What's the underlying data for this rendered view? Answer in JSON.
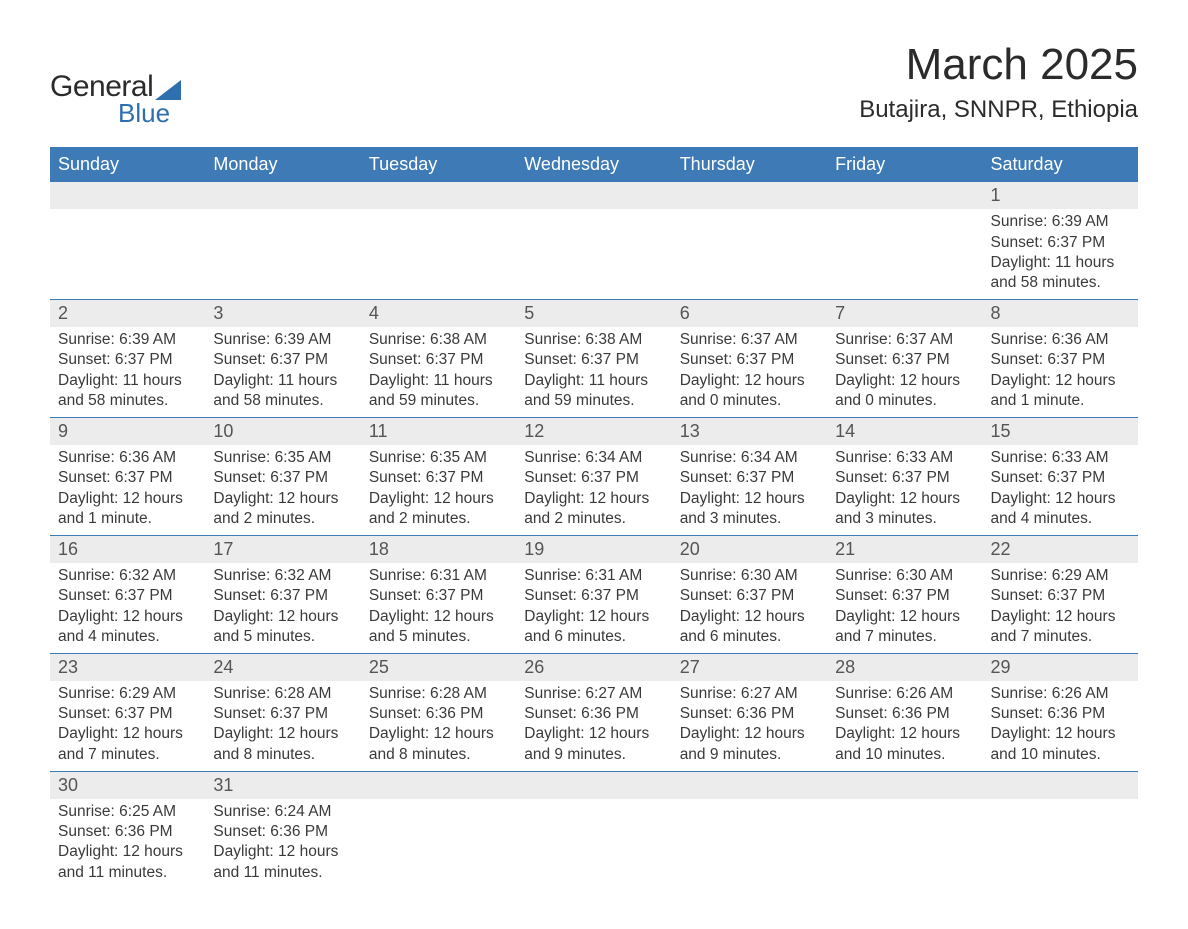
{
  "logo": {
    "text1": "General",
    "text2": "Blue",
    "shape_color": "#2e6fb0"
  },
  "title": "March 2025",
  "location": "Butajira, SNNPR, Ethiopia",
  "colors": {
    "header_bg": "#3d7ab6",
    "header_text": "#ffffff",
    "daynum_bg": "#ececec",
    "border": "#3d7ab6",
    "body_text": "#3a3a3a"
  },
  "weekdays": [
    "Sunday",
    "Monday",
    "Tuesday",
    "Wednesday",
    "Thursday",
    "Friday",
    "Saturday"
  ],
  "weeks": [
    [
      null,
      null,
      null,
      null,
      null,
      null,
      {
        "n": "1",
        "sr": "6:39 AM",
        "ss": "6:37 PM",
        "dl": "11 hours and 58 minutes."
      }
    ],
    [
      {
        "n": "2",
        "sr": "6:39 AM",
        "ss": "6:37 PM",
        "dl": "11 hours and 58 minutes."
      },
      {
        "n": "3",
        "sr": "6:39 AM",
        "ss": "6:37 PM",
        "dl": "11 hours and 58 minutes."
      },
      {
        "n": "4",
        "sr": "6:38 AM",
        "ss": "6:37 PM",
        "dl": "11 hours and 59 minutes."
      },
      {
        "n": "5",
        "sr": "6:38 AM",
        "ss": "6:37 PM",
        "dl": "11 hours and 59 minutes."
      },
      {
        "n": "6",
        "sr": "6:37 AM",
        "ss": "6:37 PM",
        "dl": "12 hours and 0 minutes."
      },
      {
        "n": "7",
        "sr": "6:37 AM",
        "ss": "6:37 PM",
        "dl": "12 hours and 0 minutes."
      },
      {
        "n": "8",
        "sr": "6:36 AM",
        "ss": "6:37 PM",
        "dl": "12 hours and 1 minute."
      }
    ],
    [
      {
        "n": "9",
        "sr": "6:36 AM",
        "ss": "6:37 PM",
        "dl": "12 hours and 1 minute."
      },
      {
        "n": "10",
        "sr": "6:35 AM",
        "ss": "6:37 PM",
        "dl": "12 hours and 2 minutes."
      },
      {
        "n": "11",
        "sr": "6:35 AM",
        "ss": "6:37 PM",
        "dl": "12 hours and 2 minutes."
      },
      {
        "n": "12",
        "sr": "6:34 AM",
        "ss": "6:37 PM",
        "dl": "12 hours and 2 minutes."
      },
      {
        "n": "13",
        "sr": "6:34 AM",
        "ss": "6:37 PM",
        "dl": "12 hours and 3 minutes."
      },
      {
        "n": "14",
        "sr": "6:33 AM",
        "ss": "6:37 PM",
        "dl": "12 hours and 3 minutes."
      },
      {
        "n": "15",
        "sr": "6:33 AM",
        "ss": "6:37 PM",
        "dl": "12 hours and 4 minutes."
      }
    ],
    [
      {
        "n": "16",
        "sr": "6:32 AM",
        "ss": "6:37 PM",
        "dl": "12 hours and 4 minutes."
      },
      {
        "n": "17",
        "sr": "6:32 AM",
        "ss": "6:37 PM",
        "dl": "12 hours and 5 minutes."
      },
      {
        "n": "18",
        "sr": "6:31 AM",
        "ss": "6:37 PM",
        "dl": "12 hours and 5 minutes."
      },
      {
        "n": "19",
        "sr": "6:31 AM",
        "ss": "6:37 PM",
        "dl": "12 hours and 6 minutes."
      },
      {
        "n": "20",
        "sr": "6:30 AM",
        "ss": "6:37 PM",
        "dl": "12 hours and 6 minutes."
      },
      {
        "n": "21",
        "sr": "6:30 AM",
        "ss": "6:37 PM",
        "dl": "12 hours and 7 minutes."
      },
      {
        "n": "22",
        "sr": "6:29 AM",
        "ss": "6:37 PM",
        "dl": "12 hours and 7 minutes."
      }
    ],
    [
      {
        "n": "23",
        "sr": "6:29 AM",
        "ss": "6:37 PM",
        "dl": "12 hours and 7 minutes."
      },
      {
        "n": "24",
        "sr": "6:28 AM",
        "ss": "6:37 PM",
        "dl": "12 hours and 8 minutes."
      },
      {
        "n": "25",
        "sr": "6:28 AM",
        "ss": "6:36 PM",
        "dl": "12 hours and 8 minutes."
      },
      {
        "n": "26",
        "sr": "6:27 AM",
        "ss": "6:36 PM",
        "dl": "12 hours and 9 minutes."
      },
      {
        "n": "27",
        "sr": "6:27 AM",
        "ss": "6:36 PM",
        "dl": "12 hours and 9 minutes."
      },
      {
        "n": "28",
        "sr": "6:26 AM",
        "ss": "6:36 PM",
        "dl": "12 hours and 10 minutes."
      },
      {
        "n": "29",
        "sr": "6:26 AM",
        "ss": "6:36 PM",
        "dl": "12 hours and 10 minutes."
      }
    ],
    [
      {
        "n": "30",
        "sr": "6:25 AM",
        "ss": "6:36 PM",
        "dl": "12 hours and 11 minutes."
      },
      {
        "n": "31",
        "sr": "6:24 AM",
        "ss": "6:36 PM",
        "dl": "12 hours and 11 minutes."
      },
      null,
      null,
      null,
      null,
      null
    ]
  ],
  "labels": {
    "sunrise": "Sunrise: ",
    "sunset": "Sunset: ",
    "daylight": "Daylight: "
  }
}
